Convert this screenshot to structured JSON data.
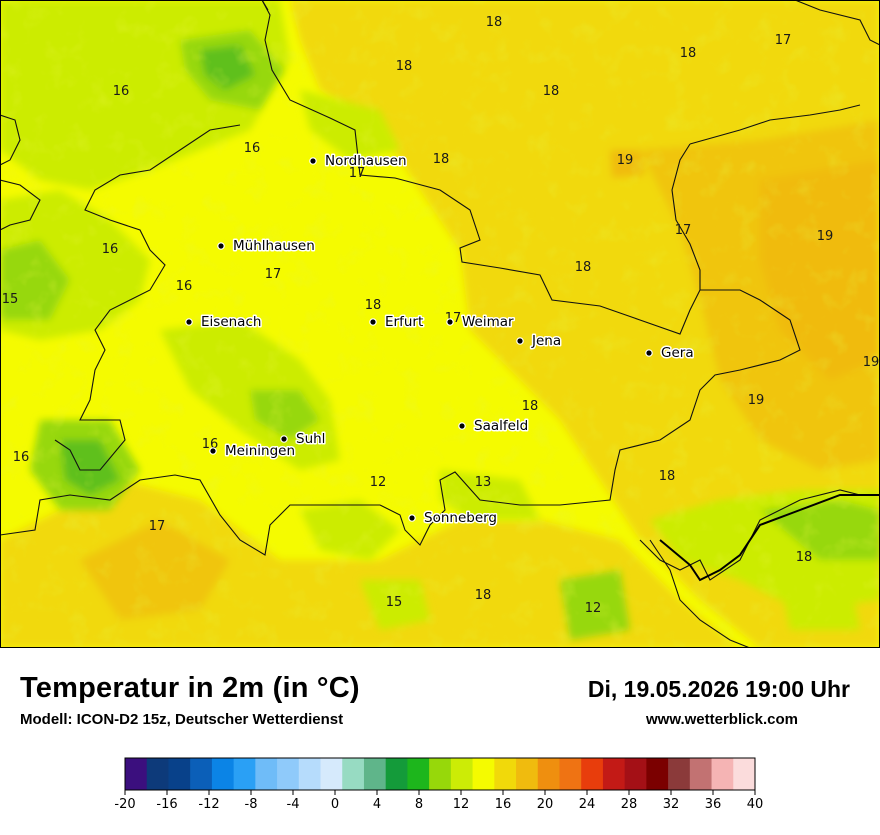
{
  "map": {
    "cities": [
      {
        "name": "Nordhausen",
        "label": "Nordhausen"
      },
      {
        "name": "Mühlhausen",
        "label": "Mühlhausen"
      },
      {
        "name": "Eisenach",
        "label": "Eisenach"
      },
      {
        "name": "Erfurt",
        "label": "Erfurt"
      },
      {
        "name": "Weimar",
        "label": "Weimar"
      },
      {
        "name": "Jena",
        "label": "Jena"
      },
      {
        "name": "Gera",
        "label": "Gera"
      },
      {
        "name": "Suhl",
        "label": "Suhl"
      },
      {
        "name": "Meiningen",
        "label": "Meiningen"
      },
      {
        "name": "Saalfeld",
        "label": "Saalfeld"
      },
      {
        "name": "Sonneberg",
        "label": "Sonneberg"
      }
    ],
    "values": [
      "18",
      "18",
      "17",
      "18",
      "18",
      "16",
      "16",
      "17",
      "18",
      "19",
      "17",
      "19",
      "16",
      "18",
      "17",
      "16",
      "15",
      "18",
      "17",
      "18",
      "19",
      "16",
      "16",
      "12",
      "13",
      "18",
      "17",
      "18",
      "15",
      "18",
      "12",
      "19"
    ]
  },
  "footer": {
    "title": "Temperatur in 2m (in °C)",
    "model": "Modell: ICON-D2 15z, Deutscher Wetterdienst",
    "datetime": "Di, 19.05.2026 19:00 Uhr",
    "website": "www.wetterblick.com"
  },
  "colorbar": {
    "colors": [
      "#3b0f7e",
      "#0d3a7a",
      "#08418a",
      "#0b5fb8",
      "#0b84e6",
      "#2aa0f5",
      "#6fbcf8",
      "#8fcafa",
      "#b6dcfc",
      "#d6eafc",
      "#97dbc2",
      "#5fb58a",
      "#149b3a",
      "#1db61c",
      "#97d80a",
      "#ccec06",
      "#f5fb00",
      "#f1d90a",
      "#f0bb0e",
      "#ef8f0f",
      "#ef7313",
      "#e83d0c",
      "#c31a16",
      "#a41016",
      "#7b0000",
      "#8b3a3a",
      "#c27272",
      "#f5b4b4",
      "#fbdcdc"
    ],
    "ticks": [
      "-20",
      "-16",
      "-12",
      "-8",
      "-4",
      "0",
      "4",
      "8",
      "12",
      "16",
      "20",
      "24",
      "28",
      "32",
      "36",
      "40"
    ]
  }
}
